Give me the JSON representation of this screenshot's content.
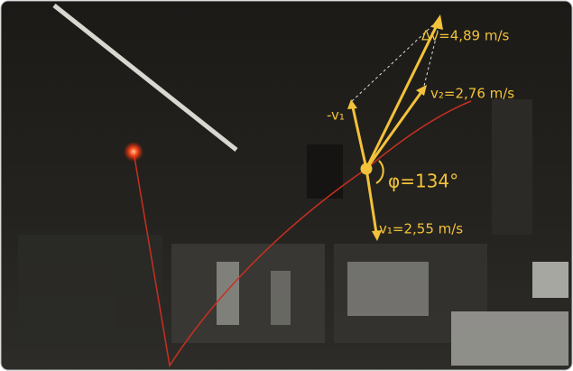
{
  "annotations": {
    "delta_v": "Δv=4,89 m/s",
    "v2": "v₂=2,76 m/s",
    "neg_v1": "-v₁",
    "phi": "φ=134°",
    "v1": "v₁=2,55 m/s"
  }
}
